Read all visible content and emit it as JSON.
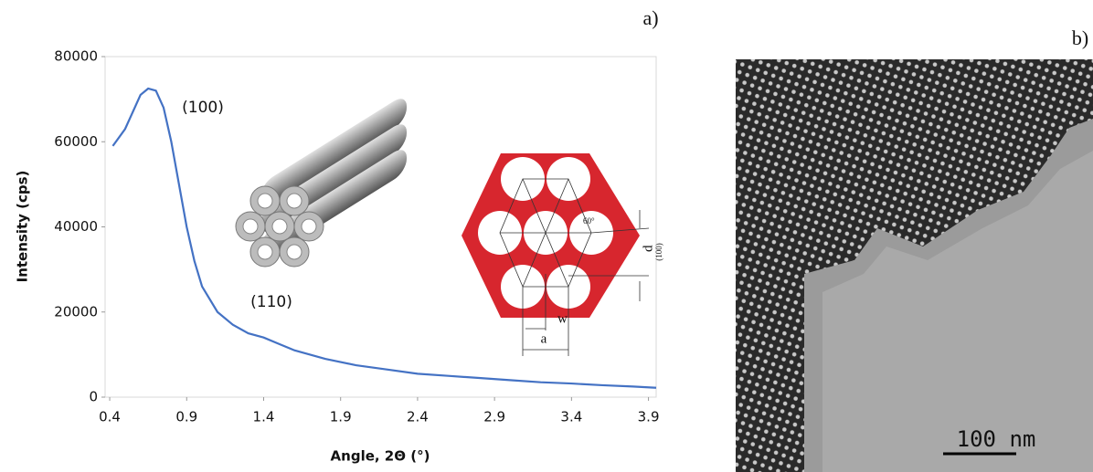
{
  "chart_data": {
    "type": "line",
    "ylabel": "Intensity (cps)",
    "xlabel": "Angle, 2Θ (°)",
    "annotations": [
      "a)",
      "b)",
      "(100)",
      "(110)"
    ],
    "x": [
      0.42,
      0.5,
      0.55,
      0.6,
      0.65,
      0.7,
      0.75,
      0.8,
      0.85,
      0.9,
      0.95,
      1.0,
      1.1,
      1.2,
      1.3,
      1.4,
      1.5,
      1.6,
      1.8,
      2.0,
      2.2,
      2.4,
      2.6,
      2.8,
      3.0,
      3.2,
      3.4,
      3.6,
      3.8,
      3.95
    ],
    "series": [
      {
        "color": "#4472c4",
        "values": [
          59000,
          63000,
          67000,
          71000,
          72500,
          72000,
          68000,
          60000,
          50000,
          40000,
          32000,
          26000,
          20000,
          17000,
          15000,
          14000,
          12500,
          11000,
          9000,
          7500,
          6500,
          5500,
          5000,
          4500,
          4000,
          3500,
          3200,
          2800,
          2500,
          2200
        ]
      }
    ],
    "xlim": [
      0.37,
      3.95
    ],
    "ylim": [
      0,
      80000
    ],
    "xticks": [
      0.4,
      0.9,
      1.4,
      1.9,
      2.4,
      2.9,
      3.4,
      3.9
    ],
    "yticks": [
      0,
      20000,
      40000,
      60000,
      80000
    ]
  },
  "inset": {
    "angle": "60°",
    "d": "d",
    "d_sub": "(100)",
    "w": "w",
    "a": "a",
    "scale_bar": "100 nm"
  }
}
